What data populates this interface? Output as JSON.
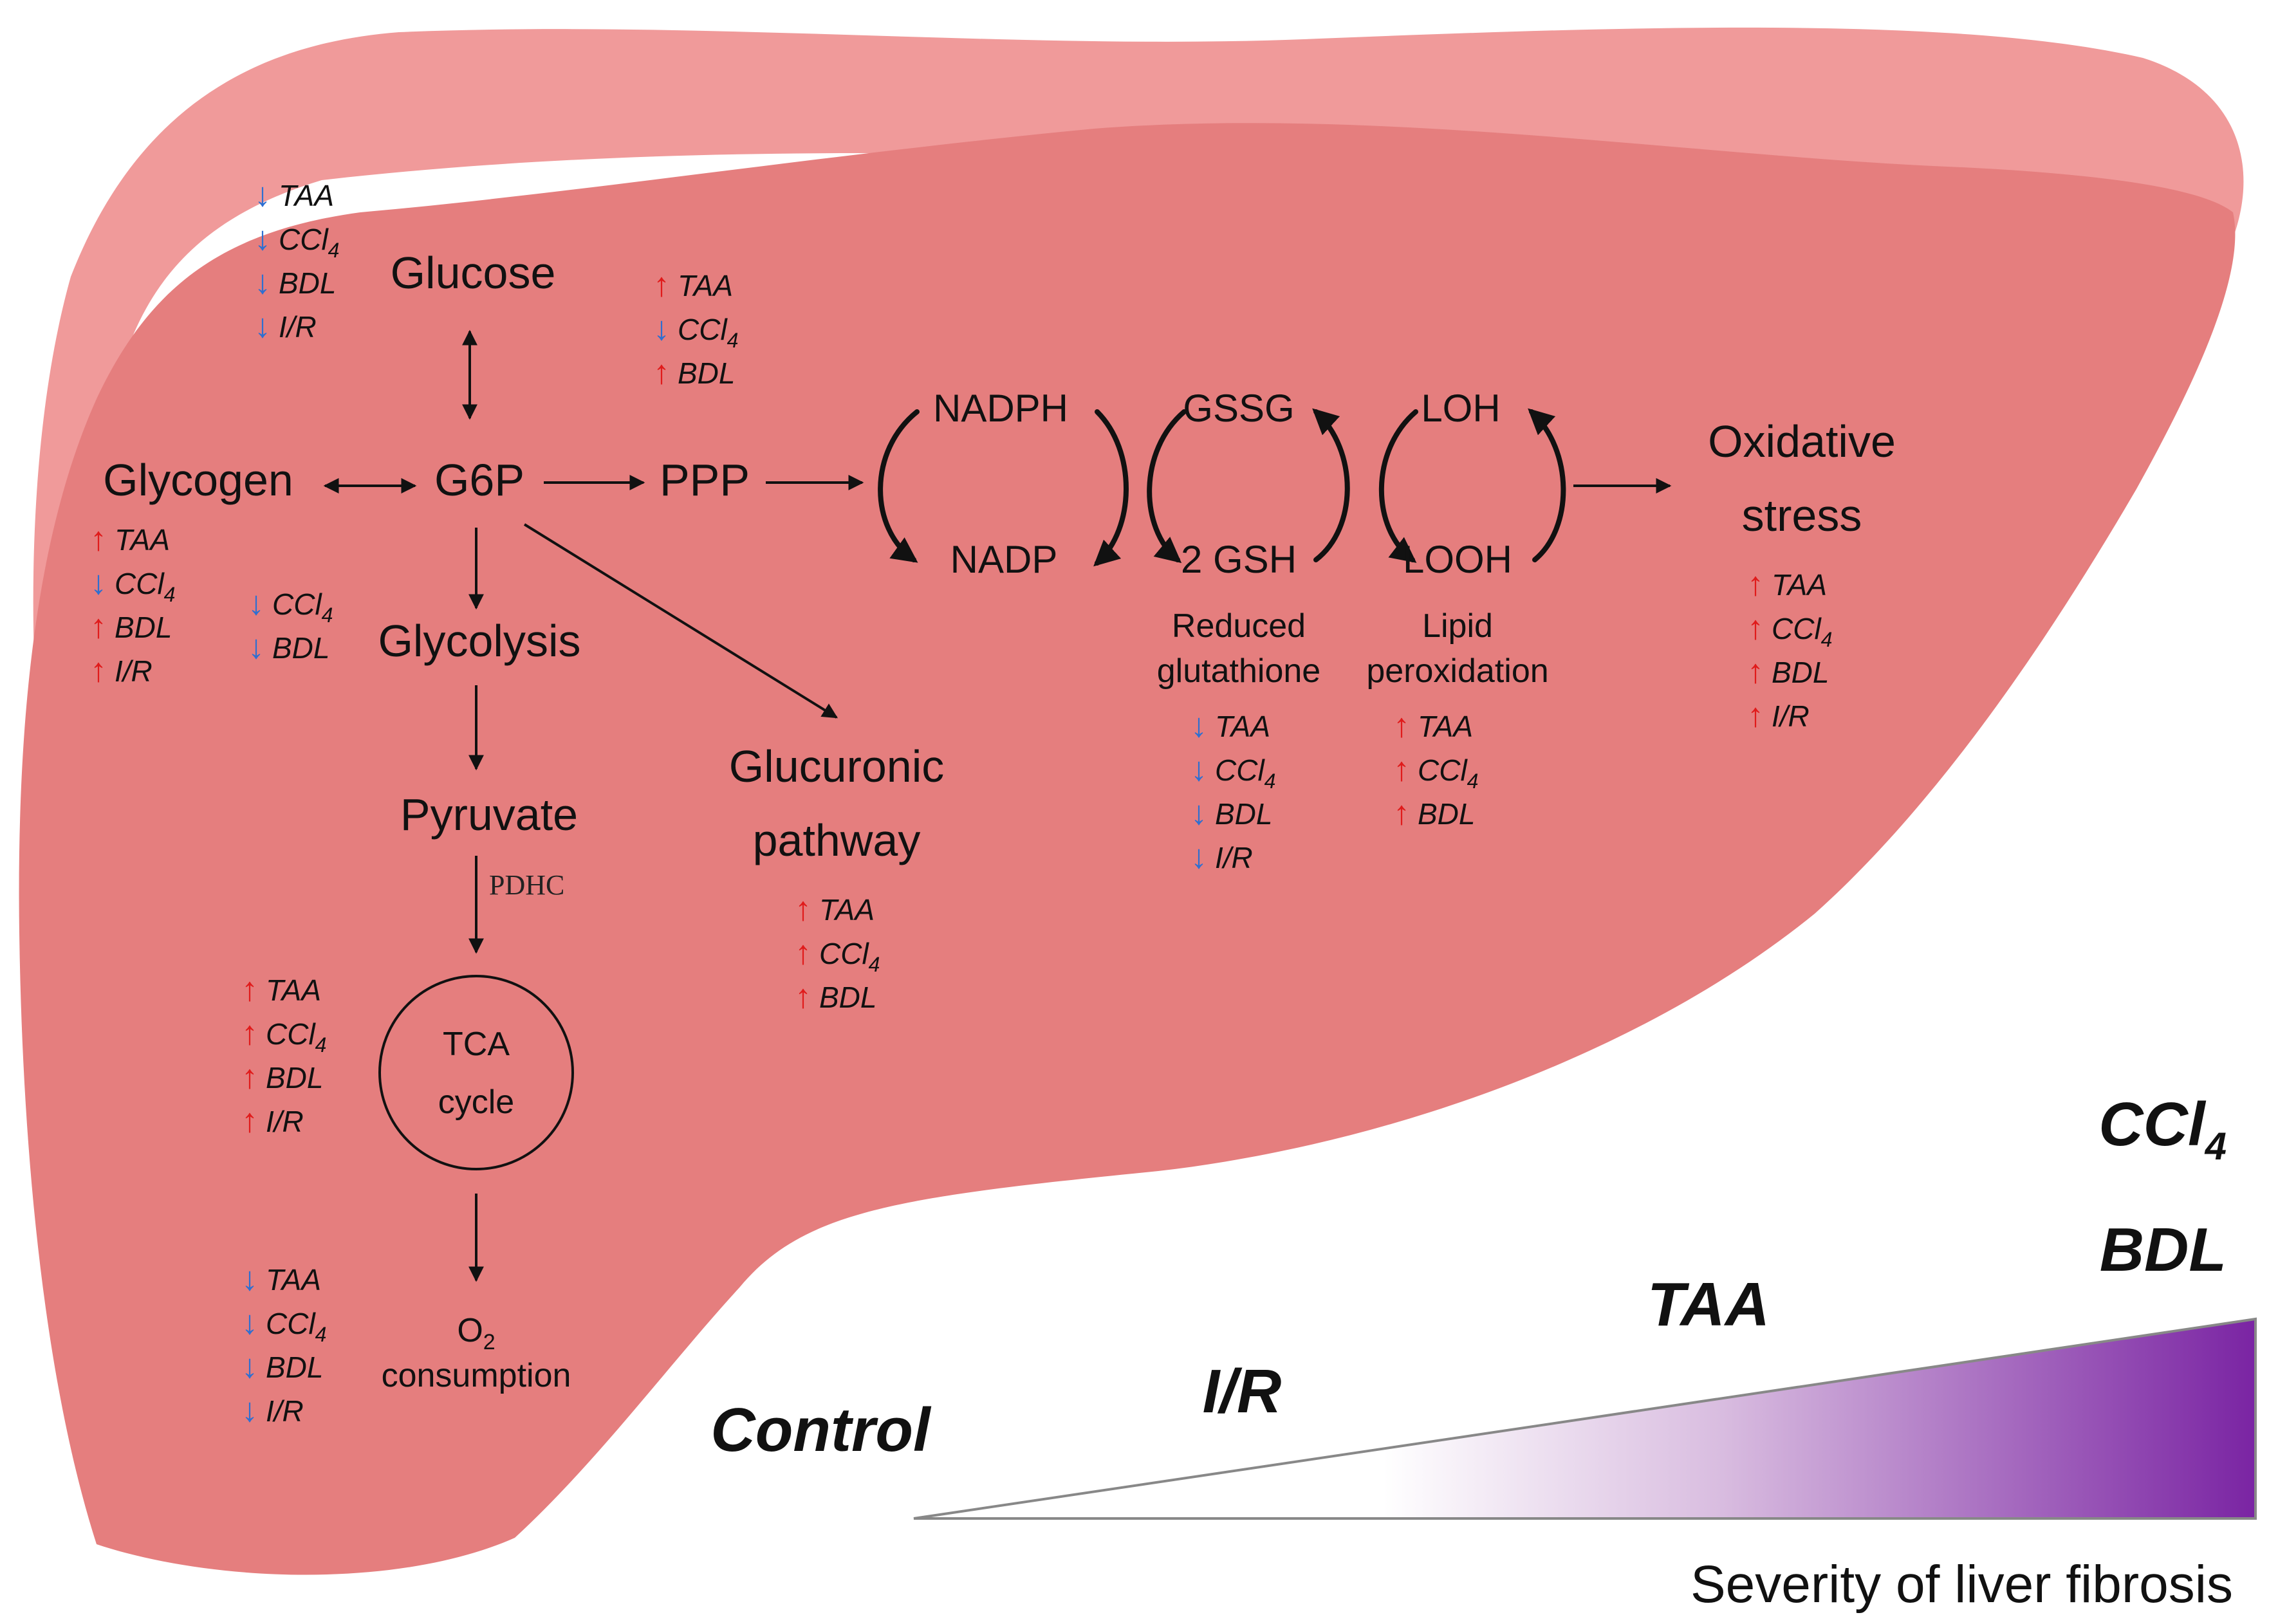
{
  "diagram": {
    "nodes": {
      "glucose": "Glucose",
      "glycogen": "Glycogen",
      "g6p": "G6P",
      "ppp": "PPP",
      "glycolysis": "Glycolysis",
      "pyruvate": "Pyruvate",
      "pdhc": "PDHC",
      "tca_line1": "TCA",
      "tca_line2": "cycle",
      "o2_main": "O",
      "o2_sub": "2",
      "o2_line2": "consumption",
      "glucuronic_line1": "Glucuronic",
      "glucuronic_line2": "pathway",
      "nadph": "NADPH",
      "nadp": "NADP",
      "gssg": "GSSG",
      "gsh": "2 GSH",
      "reduced_line1": "Reduced",
      "reduced_line2": "glutathione",
      "loh": "LOH",
      "looh": "LOOH",
      "lipid_line1": "Lipid",
      "lipid_line2": "peroxidation",
      "oxidative_line1": "Oxidative",
      "oxidative_line2": "stress"
    },
    "indicator_groups": {
      "glucose": [
        {
          "arrow": "↓",
          "dir": "down",
          "label": "TAA"
        },
        {
          "arrow": "↓",
          "dir": "down",
          "label": "CCl",
          "sub": "4"
        },
        {
          "arrow": "↓",
          "dir": "down",
          "label": "BDL"
        },
        {
          "arrow": "↓",
          "dir": "down",
          "label": "I/R"
        }
      ],
      "glycogen": [
        {
          "arrow": "↑",
          "dir": "up",
          "label": "TAA"
        },
        {
          "arrow": "↓",
          "dir": "down",
          "label": "CCl",
          "sub": "4"
        },
        {
          "arrow": "↑",
          "dir": "up",
          "label": "BDL"
        },
        {
          "arrow": "↑",
          "dir": "up",
          "label": "I/R"
        }
      ],
      "glycolysis": [
        {
          "arrow": "↓",
          "dir": "down",
          "label": "CCl",
          "sub": "4"
        },
        {
          "arrow": "↓",
          "dir": "down",
          "label": "BDL"
        }
      ],
      "ppp": [
        {
          "arrow": "↑",
          "dir": "up",
          "label": "TAA"
        },
        {
          "arrow": "↓",
          "dir": "down",
          "label": "CCl",
          "sub": "4"
        },
        {
          "arrow": "↑",
          "dir": "up",
          "label": "BDL"
        }
      ],
      "tca": [
        {
          "arrow": "↑",
          "dir": "up",
          "label": "TAA"
        },
        {
          "arrow": "↑",
          "dir": "up",
          "label": "CCl",
          "sub": "4"
        },
        {
          "arrow": "↑",
          "dir": "up",
          "label": "BDL"
        },
        {
          "arrow": "↑",
          "dir": "up",
          "label": "I/R"
        }
      ],
      "o2": [
        {
          "arrow": "↓",
          "dir": "down",
          "label": "TAA"
        },
        {
          "arrow": "↓",
          "dir": "down",
          "label": "CCl",
          "sub": "4"
        },
        {
          "arrow": "↓",
          "dir": "down",
          "label": "BDL"
        },
        {
          "arrow": "↓",
          "dir": "down",
          "label": "I/R"
        }
      ],
      "glucuronic": [
        {
          "arrow": "↑",
          "dir": "up",
          "label": "TAA"
        },
        {
          "arrow": "↑",
          "dir": "up",
          "label": "CCl",
          "sub": "4"
        },
        {
          "arrow": "↑",
          "dir": "up",
          "label": "BDL"
        }
      ],
      "glutathione": [
        {
          "arrow": "↓",
          "dir": "down",
          "label": "TAA"
        },
        {
          "arrow": "↓",
          "dir": "down",
          "label": "CCl",
          "sub": "4"
        },
        {
          "arrow": "↓",
          "dir": "down",
          "label": "BDL"
        },
        {
          "arrow": "↓",
          "dir": "down",
          "label": "I/R"
        }
      ],
      "lipid": [
        {
          "arrow": "↑",
          "dir": "up",
          "label": "TAA"
        },
        {
          "arrow": "↑",
          "dir": "up",
          "label": "CCl",
          "sub": "4"
        },
        {
          "arrow": "↑",
          "dir": "up",
          "label": "BDL"
        }
      ],
      "oxidative": [
        {
          "arrow": "↑",
          "dir": "up",
          "label": "TAA"
        },
        {
          "arrow": "↑",
          "dir": "up",
          "label": "CCl",
          "sub": "4"
        },
        {
          "arrow": "↑",
          "dir": "up",
          "label": "BDL"
        },
        {
          "arrow": "↑",
          "dir": "up",
          "label": "I/R"
        }
      ]
    }
  },
  "severity_scale": {
    "axis_label": "Severity of liver fibrosis",
    "models": [
      {
        "label": "Control"
      },
      {
        "label": "I/R"
      },
      {
        "label": "TAA"
      },
      {
        "label": "BDL"
      },
      {
        "label": "CCl",
        "sub": "4"
      }
    ]
  },
  "colors": {
    "liver_body": "#e57e7e",
    "liver_rim": "#f09a9a",
    "increase": "#e01b1b",
    "decrease": "#2e6fd1",
    "gradient_start": "#ffffff",
    "gradient_end": "#7a24a3"
  }
}
